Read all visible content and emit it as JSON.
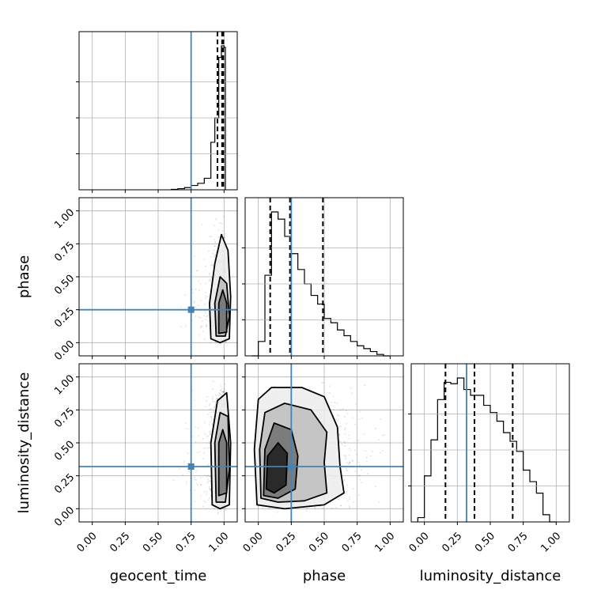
{
  "chart_data": {
    "type": "corner",
    "parameters": [
      "geocent_time",
      "phase",
      "luminosity_distance"
    ],
    "axis_labels": {
      "x": [
        "geocent_time",
        "phase",
        "luminosity_distance"
      ],
      "y": [
        "",
        "phase",
        "luminosity_distance"
      ]
    },
    "range": [
      -0.1,
      1.1
    ],
    "ticks": [
      0.0,
      0.25,
      0.5,
      0.75,
      1.0
    ],
    "tick_labels": [
      "0.00",
      "0.25",
      "0.50",
      "0.75",
      "1.00"
    ],
    "truths": {
      "geocent_time": 0.75,
      "phase": 0.25,
      "luminosity_distance": 0.32
    },
    "quantiles": {
      "geocent_time": [
        0.95,
        0.985,
        0.995
      ],
      "phase": [
        0.09,
        0.24,
        0.49
      ],
      "luminosity_distance": [
        0.16,
        0.38,
        0.67
      ]
    },
    "histograms": {
      "geocent_time": {
        "edges": [
          0.6,
          0.65,
          0.7,
          0.75,
          0.8,
          0.85,
          0.9,
          0.93,
          0.96,
          0.98,
          1.0,
          1.01
        ],
        "counts": [
          0.003,
          0.008,
          0.015,
          0.03,
          0.045,
          0.08,
          0.33,
          0.5,
          0.92,
          1.0,
          0.99
        ]
      },
      "phase": {
        "edges": [
          -0.05,
          0.0,
          0.05,
          0.1,
          0.15,
          0.2,
          0.25,
          0.3,
          0.35,
          0.4,
          0.45,
          0.5,
          0.55,
          0.6,
          0.65,
          0.7,
          0.75,
          0.8,
          0.85,
          0.9,
          0.95,
          1.0
        ],
        "counts": [
          0.0,
          0.1,
          0.56,
          1.0,
          0.95,
          0.83,
          0.71,
          0.6,
          0.5,
          0.42,
          0.36,
          0.26,
          0.23,
          0.18,
          0.14,
          0.1,
          0.07,
          0.05,
          0.03,
          0.01,
          0.0
        ]
      },
      "luminosity_distance": {
        "edges": [
          -0.05,
          0.0,
          0.05,
          0.1,
          0.15,
          0.2,
          0.25,
          0.3,
          0.35,
          0.4,
          0.45,
          0.5,
          0.55,
          0.6,
          0.65,
          0.7,
          0.75,
          0.8,
          0.85,
          0.9,
          0.95,
          1.0
        ],
        "counts": [
          0.03,
          0.32,
          0.57,
          0.85,
          0.97,
          0.96,
          1.0,
          0.92,
          0.88,
          0.88,
          0.81,
          0.76,
          0.7,
          0.62,
          0.56,
          0.49,
          0.36,
          0.28,
          0.2,
          0.05,
          0.0
        ]
      }
    },
    "joint_densities": [
      {
        "x": "geocent_time",
        "y": "phase",
        "centroid": [
          0.99,
          0.2
        ],
        "contours": [
          {
            "level": "outer",
            "points": [
              [
                0.9,
                0.03
              ],
              [
                0.89,
                0.3
              ],
              [
                0.93,
                0.6
              ],
              [
                0.98,
                0.82
              ],
              [
                1.03,
                0.7
              ],
              [
                1.05,
                0.35
              ],
              [
                1.04,
                0.03
              ],
              [
                0.97,
                0.0
              ]
            ]
          },
          {
            "level": "mid",
            "points": [
              [
                0.94,
                0.05
              ],
              [
                0.93,
                0.3
              ],
              [
                0.97,
                0.5
              ],
              [
                1.02,
                0.45
              ],
              [
                1.04,
                0.2
              ],
              [
                1.01,
                0.05
              ]
            ]
          },
          {
            "level": "inner",
            "points": [
              [
                0.96,
                0.07
              ],
              [
                0.96,
                0.3
              ],
              [
                0.99,
                0.4
              ],
              [
                1.02,
                0.3
              ],
              [
                1.02,
                0.08
              ]
            ]
          }
        ]
      },
      {
        "x": "geocent_time",
        "y": "luminosity_distance",
        "centroid": [
          0.99,
          0.4
        ],
        "contours": [
          {
            "level": "outer",
            "points": [
              [
                0.91,
                0.03
              ],
              [
                0.9,
                0.5
              ],
              [
                0.95,
                0.82
              ],
              [
                1.02,
                0.88
              ],
              [
                1.05,
                0.5
              ],
              [
                1.04,
                0.03
              ],
              [
                0.97,
                0.0
              ]
            ]
          },
          {
            "level": "mid",
            "points": [
              [
                0.94,
                0.05
              ],
              [
                0.93,
                0.5
              ],
              [
                0.97,
                0.73
              ],
              [
                1.03,
                0.7
              ],
              [
                1.04,
                0.3
              ],
              [
                1.01,
                0.05
              ]
            ]
          },
          {
            "level": "inner",
            "points": [
              [
                0.96,
                0.1
              ],
              [
                0.96,
                0.5
              ],
              [
                0.99,
                0.6
              ],
              [
                1.02,
                0.5
              ],
              [
                1.02,
                0.12
              ]
            ]
          }
        ]
      },
      {
        "x": "phase",
        "y": "luminosity_distance",
        "centroid": [
          0.18,
          0.4
        ],
        "contours": [
          {
            "level": "outer",
            "points": [
              [
                -0.01,
                0.03
              ],
              [
                -0.03,
                0.45
              ],
              [
                0.0,
                0.83
              ],
              [
                0.1,
                0.92
              ],
              [
                0.33,
                0.92
              ],
              [
                0.5,
                0.85
              ],
              [
                0.6,
                0.62
              ],
              [
                0.62,
                0.32
              ],
              [
                0.65,
                0.12
              ],
              [
                0.5,
                0.03
              ],
              [
                0.2,
                0.0
              ]
            ]
          },
          {
            "level": "mid",
            "points": [
              [
                0.02,
                0.08
              ],
              [
                0.01,
                0.45
              ],
              [
                0.05,
                0.73
              ],
              [
                0.2,
                0.8
              ],
              [
                0.4,
                0.75
              ],
              [
                0.52,
                0.58
              ],
              [
                0.5,
                0.35
              ],
              [
                0.52,
                0.12
              ],
              [
                0.35,
                0.06
              ],
              [
                0.15,
                0.05
              ]
            ]
          },
          {
            "level": "inner",
            "points": [
              [
                0.04,
                0.1
              ],
              [
                0.05,
                0.45
              ],
              [
                0.12,
                0.65
              ],
              [
                0.25,
                0.6
              ],
              [
                0.3,
                0.4
              ],
              [
                0.28,
                0.15
              ],
              [
                0.15,
                0.08
              ]
            ]
          },
          {
            "level": "core",
            "points": [
              [
                0.06,
                0.15
              ],
              [
                0.07,
                0.4
              ],
              [
                0.15,
                0.5
              ],
              [
                0.22,
                0.42
              ],
              [
                0.21,
                0.18
              ],
              [
                0.12,
                0.12
              ]
            ]
          }
        ]
      }
    ],
    "colors": {
      "truth": "#4682b4",
      "hist": "#000000",
      "grid": "#b0b0b0",
      "scatter": "#000000"
    },
    "grid": true
  }
}
